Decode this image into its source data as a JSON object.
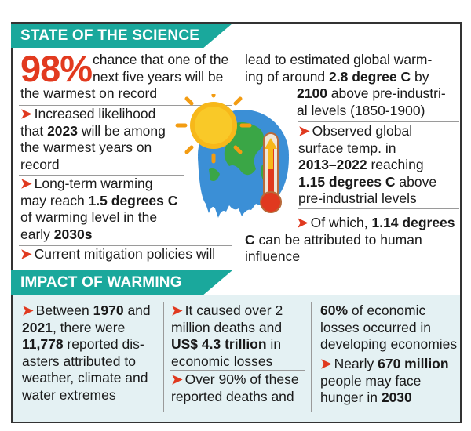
{
  "state": {
    "header": "STATE OF THE SCIENCE",
    "big_value": "98%",
    "big_text_1": "chance that one of the",
    "big_text_2": "next five years will be",
    "big_text_3": "the warmest on record",
    "b1_l1": "Increased likelihood",
    "b1_l2a": "that ",
    "b1_l2b": "2023",
    "b1_l2c": " will be among",
    "b1_l3": "the warmest years on",
    "b1_l4": "record",
    "b2_l1": "Long-term warming",
    "b2_l2a": "may reach ",
    "b2_l2b": "1.5 degrees C",
    "b2_l3": "of warming level in the",
    "b2_l4a": "early ",
    "b2_l4b": "2030s",
    "b3_l1": "Current mitigation policies will",
    "r1_l1": "lead to estimated global warm-",
    "r1_l2a": "ing of around ",
    "r1_l2b": "2.8 degree C",
    "r1_l2c": " by",
    "r1_l3a": "2100",
    "r1_l3b": " above pre-industri-",
    "r1_l4": "al levels (1850-1900)",
    "r2_l1": "Observed global",
    "r2_l2": "surface temp. in",
    "r2_l3a": "2013–2022",
    "r2_l3b": " reaching",
    "r2_l4a": "1.15 degrees C",
    "r2_l4b": " above",
    "r2_l5": "pre-industrial levels",
    "r3_l1a": "Of which, ",
    "r3_l1b": "1.14 degrees",
    "r3_l2a": "C",
    "r3_l2b": " can be attributed to human",
    "r3_l3": "influence"
  },
  "impact": {
    "header": "IMPACT OF WARMING",
    "c1_l1a": "Between ",
    "c1_l1b": "1970",
    "c1_l1c": " and",
    "c1_l2a": "2021",
    "c1_l2b": ", there were",
    "c1_l3a": "11,778",
    "c1_l3b": " reported dis-",
    "c1_l4": "asters attributed to",
    "c1_l5": "weather, climate and",
    "c1_l6": "water extremes",
    "c2_l1": "It caused over 2",
    "c2_l2": "million deaths and",
    "c2_l3a": "US$ 4.3 trillion",
    "c2_l3b": " in",
    "c2_l4": "economic losses",
    "c2_b2_l1": "Over 90% of these",
    "c2_b2_l2": "reported deaths and",
    "c3_l1a": "60%",
    "c3_l1b": " of economic",
    "c3_l2": "losses occurred in",
    "c3_l3": "developing economies",
    "c3_b2_l1a": "Nearly ",
    "c3_b2_l1b": "670 million",
    "c3_b2_l2": "people may face",
    "c3_b2_l3a": "hunger in ",
    "c3_b2_l3b": "2030"
  },
  "colors": {
    "header_teal": "#1aa89c",
    "accent_red": "#e23a1f",
    "impact_bg": "#e4f1f3"
  },
  "icons": [
    "arrow-bullet-icon",
    "melting-earth-icon",
    "sun-icon",
    "thermometer-icon"
  ]
}
